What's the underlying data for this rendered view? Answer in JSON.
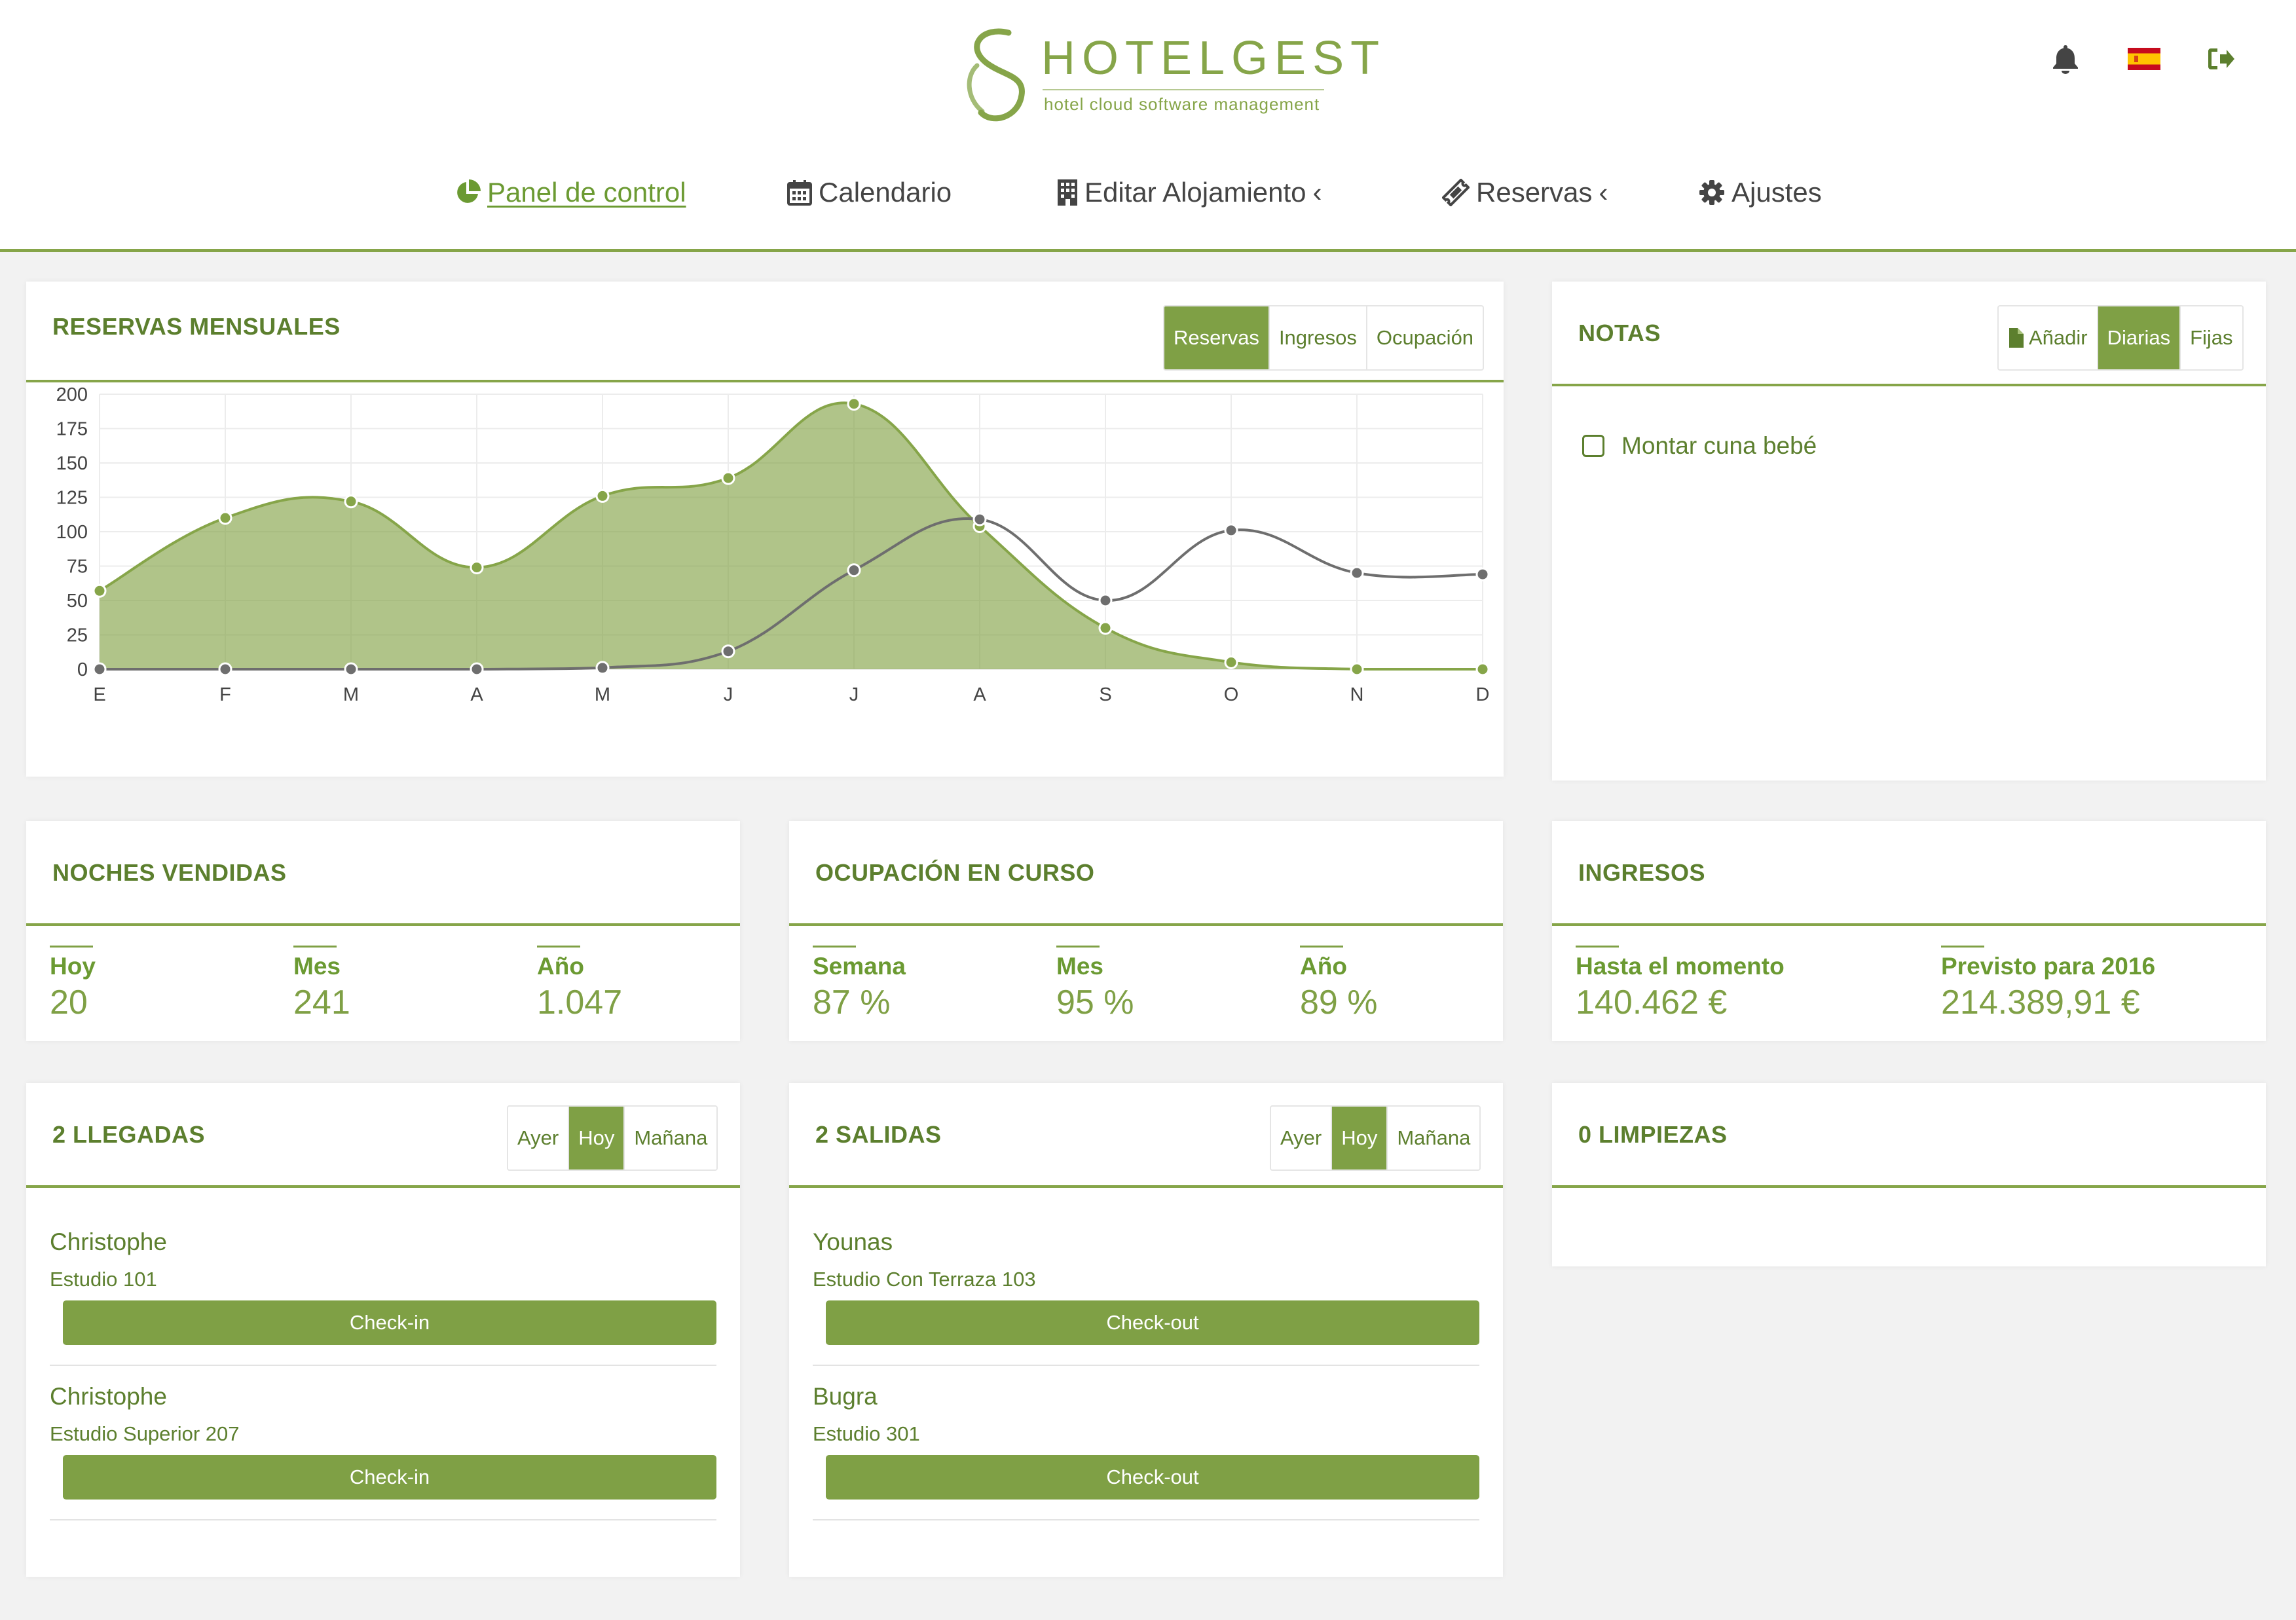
{
  "header": {
    "logo_title": "HOTELGEST",
    "logo_subtitle": "hotel cloud software management",
    "icons": [
      "bell-icon",
      "spain-flag-icon",
      "logout-icon"
    ]
  },
  "nav": {
    "items": [
      {
        "label": "Panel de control",
        "icon": "pie-chart-icon",
        "active": true
      },
      {
        "label": "Calendario",
        "icon": "calendar-icon"
      },
      {
        "label": "Editar Alojamiento",
        "icon": "building-icon",
        "chevron": "‹"
      },
      {
        "label": "Reservas",
        "icon": "ticket-icon",
        "chevron": "‹"
      },
      {
        "label": "Ajustes",
        "icon": "gear-icon"
      }
    ]
  },
  "monthly": {
    "title": "RESERVAS MENSUALES",
    "tabs": [
      "Reservas",
      "Ingresos",
      "Ocupación"
    ],
    "active_tab": "Reservas"
  },
  "chart_data": {
    "type": "area",
    "categories": [
      "E",
      "F",
      "M",
      "A",
      "M",
      "J",
      "J",
      "A",
      "S",
      "O",
      "N",
      "D"
    ],
    "series": [
      {
        "values": [
          57,
          110,
          122,
          74,
          126,
          139,
          193,
          104,
          30,
          5,
          0,
          0
        ],
        "color": "#86a549",
        "fill": true
      },
      {
        "values": [
          0,
          0,
          0,
          0,
          1,
          13,
          72,
          109,
          50,
          101,
          70,
          69
        ],
        "color": "#6e6e6e",
        "fill": false
      }
    ],
    "yticks": [
      "0",
      "25",
      "50",
      "75",
      "100",
      "125",
      "150",
      "175",
      "200"
    ],
    "ylim": [
      0,
      200
    ],
    "grid": true
  },
  "notes": {
    "title": "NOTAS",
    "tabs": [
      "Añadir",
      "Diarias",
      "Fijas"
    ],
    "active_tab": "Diarias",
    "items": [
      {
        "text": "Montar cuna bebé",
        "checked": false
      }
    ]
  },
  "noches": {
    "title": "NOCHES VENDIDAS",
    "stats": [
      {
        "label": "Hoy",
        "value": "20"
      },
      {
        "label": "Mes",
        "value": "241"
      },
      {
        "label": "Año",
        "value": "1.047"
      }
    ]
  },
  "ocupacion": {
    "title": "OCUPACIÓN EN CURSO",
    "stats": [
      {
        "label": "Semana",
        "value": "87 %"
      },
      {
        "label": "Mes",
        "value": "95 %"
      },
      {
        "label": "Año",
        "value": "89 %"
      }
    ]
  },
  "ingresos": {
    "title": "INGRESOS",
    "stats": [
      {
        "label": "Hasta el momento",
        "value": "140.462 €"
      },
      {
        "label": "Previsto para 2016",
        "value": "214.389,91 €"
      }
    ]
  },
  "llegadas": {
    "title": "2 LLEGADAS",
    "tabs": [
      "Ayer",
      "Hoy",
      "Mañana"
    ],
    "active_tab": "Hoy",
    "items": [
      {
        "name": "Christophe",
        "room": "Estudio 101",
        "action": "Check-in"
      },
      {
        "name": "Christophe",
        "room": "Estudio Superior 207",
        "action": "Check-in"
      }
    ]
  },
  "salidas": {
    "title": "2 SALIDAS",
    "tabs": [
      "Ayer",
      "Hoy",
      "Mañana"
    ],
    "active_tab": "Hoy",
    "items": [
      {
        "name": "Younas",
        "room": "Estudio Con Terraza 103",
        "action": "Check-out"
      },
      {
        "name": "Bugra",
        "room": "Estudio 301",
        "action": "Check-out"
      }
    ]
  },
  "limpiezas": {
    "title": "0 LIMPIEZAS"
  }
}
